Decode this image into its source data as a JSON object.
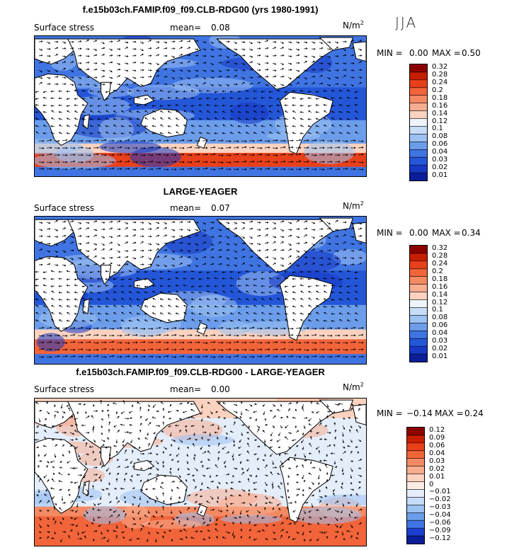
{
  "season": "JJA",
  "units": "N/m",
  "units_exp": "2",
  "panels": [
    {
      "title": "f.e15b03ch.FAMIP.f09_f09.CLB-RDG00 (yrs 1980-1991)",
      "variable": "Surface stress",
      "mean_label": "mean=",
      "mean_value": "0.08",
      "min_label": "MIN =",
      "min_value": "0.00",
      "max_label": "MAX =",
      "max_value": "0.50",
      "colorbar": [
        "0.32",
        "0.28",
        "0.24",
        "0.2",
        "0.18",
        "0.16",
        "0.14",
        "0.12",
        "0.1",
        "0.08",
        "0.06",
        "0.04",
        "0.03",
        "0.02",
        "0.01"
      ]
    },
    {
      "title": "LARGE-YEAGER",
      "variable": "Surface stress",
      "mean_label": "mean=",
      "mean_value": "0.07",
      "min_label": "MIN =",
      "min_value": "0.00",
      "max_label": "MAX =",
      "max_value": "0.34",
      "colorbar": [
        "0.32",
        "0.28",
        "0.24",
        "0.2",
        "0.18",
        "0.16",
        "0.14",
        "0.12",
        "0.1",
        "0.08",
        "0.06",
        "0.04",
        "0.03",
        "0.02",
        "0.01"
      ]
    },
    {
      "title": "f.e15b03ch.FAMIP.f09_f09.CLB-RDG00 - LARGE-YEAGER",
      "variable": "Surface stress",
      "mean_label": "mean=",
      "mean_value": "0.00",
      "min_label": "MIN =",
      "min_value": "−0.14",
      "max_label": "MAX =",
      "max_value": "0.24",
      "colorbar": [
        "0.12",
        "0.09",
        "0.06",
        "0.04",
        "0.03",
        "0.02",
        "0.01",
        "0",
        "−0.01",
        "−0.02",
        "−0.03",
        "−0.04",
        "−0.06",
        "−0.09",
        "−0.12"
      ]
    }
  ],
  "colors": {
    "seq": [
      "#8b0000",
      "#c81e00",
      "#e8401a",
      "#f2643a",
      "#f48a63",
      "#f7ad8f",
      "#fad2bf",
      "#eef4fb",
      "#c6dcf7",
      "#9cc1f2",
      "#6c9deb",
      "#3f74e2",
      "#2456d8",
      "#1638c4",
      "#0a1e9a"
    ],
    "diff": [
      "#8b0000",
      "#c81e00",
      "#e8401a",
      "#f2643a",
      "#f48a63",
      "#f7ad8f",
      "#fad2bf",
      "#fdece4",
      "#e4eefb",
      "#c6dcf7",
      "#9cc1f2",
      "#6c9deb",
      "#3f74e2",
      "#1c3fd0",
      "#0a1e9a"
    ],
    "land": "#ffffff"
  }
}
